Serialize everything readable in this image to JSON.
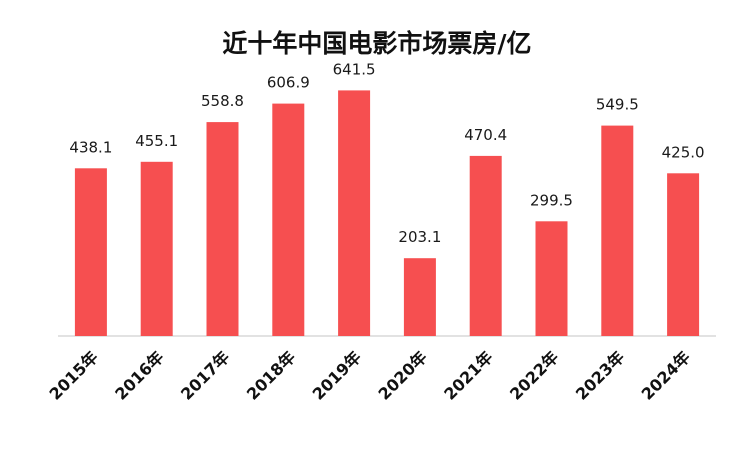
{
  "chart_data": {
    "type": "bar",
    "title": "近十年中国电影市场票房/亿",
    "categories": [
      "2015年",
      "2016年",
      "2017年",
      "2018年",
      "2019年",
      "2020年",
      "2021年",
      "2022年",
      "2023年",
      "2024年"
    ],
    "values": [
      438.1,
      455.1,
      558.8,
      606.9,
      641.5,
      203.1,
      470.4,
      299.5,
      549.5,
      425.0
    ],
    "value_labels": [
      "438.1",
      "455.1",
      "558.8",
      "606.9",
      "641.5",
      "203.1",
      "470.4",
      "299.5",
      "549.5",
      "425.0"
    ],
    "xlabel": "",
    "ylabel": "",
    "ylim": [
      0,
      700
    ],
    "grid": false,
    "legend": "none",
    "bar_color": "#F64F50",
    "axis_color": "#D9D9D9"
  }
}
